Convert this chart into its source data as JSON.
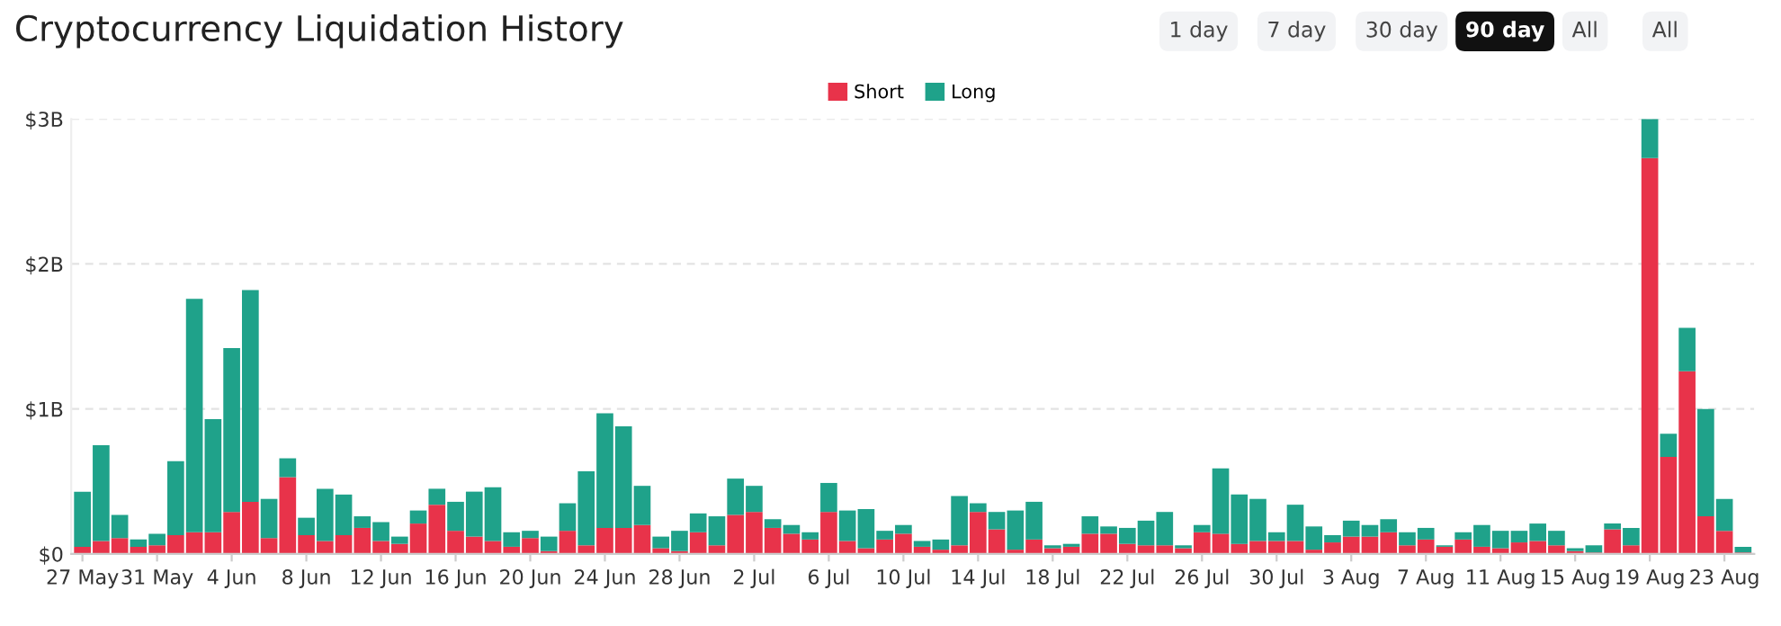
{
  "chart_data": {
    "type": "bar",
    "title": "Cryptocurrency Liquidation History",
    "annotations": [
      "1 day",
      "7 day",
      "30 day",
      "90 day",
      "All",
      "All"
    ],
    "categories": [
      "27 May",
      null,
      null,
      null,
      "31 May",
      null,
      null,
      null,
      "4 Jun",
      null,
      null,
      null,
      "8 Jun",
      null,
      null,
      null,
      "12 Jun",
      null,
      null,
      null,
      "16 Jun",
      null,
      null,
      null,
      "20 Jun",
      null,
      null,
      null,
      "24 Jun",
      null,
      null,
      null,
      "28 Jun",
      null,
      null,
      null,
      "2 Jul",
      null,
      null,
      null,
      "6 Jul",
      null,
      null,
      null,
      "10 Jul",
      null,
      null,
      null,
      "14 Jul",
      null,
      null,
      null,
      "18 Jul",
      null,
      null,
      null,
      "22 Jul",
      null,
      null,
      null,
      "26 Jul",
      null,
      null,
      null,
      "30 Jul",
      null,
      null,
      null,
      "3 Aug",
      null,
      null,
      null,
      "7 Aug",
      null,
      null,
      null,
      "11 Aug",
      null,
      null,
      null,
      "15 Aug",
      null,
      null,
      null,
      "19 Aug",
      null,
      null,
      null,
      "23 Aug",
      null
    ],
    "stacked": true,
    "series": [
      {
        "name": "Short",
        "color": "#e8334a",
        "values": [
          0.05,
          0.09,
          0.11,
          0.05,
          0.06,
          0.13,
          0.15,
          0.15,
          0.29,
          0.36,
          0.11,
          0.53,
          0.13,
          0.09,
          0.13,
          0.18,
          0.09,
          0.07,
          0.21,
          0.34,
          0.16,
          0.12,
          0.09,
          0.05,
          0.11,
          0.02,
          0.16,
          0.06,
          0.18,
          0.18,
          0.2,
          0.04,
          0.02,
          0.15,
          0.06,
          0.27,
          0.29,
          0.18,
          0.14,
          0.1,
          0.29,
          0.09,
          0.04,
          0.1,
          0.14,
          0.05,
          0.03,
          0.06,
          0.29,
          0.17,
          0.03,
          0.1,
          0.04,
          0.05,
          0.14,
          0.14,
          0.07,
          0.06,
          0.06,
          0.04,
          0.15,
          0.14,
          0.07,
          0.09,
          0.09,
          0.09,
          0.03,
          0.08,
          0.12,
          0.12,
          0.15,
          0.06,
          0.1,
          0.05,
          0.1,
          0.05,
          0.04,
          0.08,
          0.09,
          0.06,
          0.02,
          0.01,
          0.17,
          0.06,
          2.73,
          0.67,
          1.26,
          0.26,
          0.16,
          0.01
        ]
      },
      {
        "name": "Long",
        "color": "#1fa28a",
        "values": [
          0.38,
          0.66,
          0.16,
          0.05,
          0.08,
          0.51,
          1.61,
          0.78,
          1.13,
          1.46,
          0.27,
          0.13,
          0.12,
          0.36,
          0.28,
          0.08,
          0.13,
          0.05,
          0.09,
          0.11,
          0.2,
          0.31,
          0.37,
          0.1,
          0.05,
          0.1,
          0.19,
          0.51,
          0.79,
          0.7,
          0.27,
          0.08,
          0.14,
          0.13,
          0.2,
          0.25,
          0.18,
          0.06,
          0.06,
          0.05,
          0.2,
          0.21,
          0.27,
          0.06,
          0.06,
          0.04,
          0.07,
          0.34,
          0.06,
          0.12,
          0.27,
          0.26,
          0.02,
          0.02,
          0.12,
          0.05,
          0.11,
          0.17,
          0.23,
          0.02,
          0.05,
          0.45,
          0.34,
          0.29,
          0.06,
          0.25,
          0.16,
          0.05,
          0.11,
          0.08,
          0.09,
          0.09,
          0.08,
          0.01,
          0.05,
          0.15,
          0.12,
          0.08,
          0.12,
          0.1,
          0.02,
          0.05,
          0.04,
          0.12,
          0.27,
          0.16,
          0.3,
          0.74,
          0.22,
          0.04
        ]
      }
    ],
    "ylim": [
      0,
      3
    ],
    "yticks": [
      {
        "value": 0,
        "label": "$0"
      },
      {
        "value": 1,
        "label": "$1B"
      },
      {
        "value": 2,
        "label": "$2B"
      },
      {
        "value": 3,
        "label": "$3B"
      }
    ],
    "grid": "y",
    "legend": "top"
  }
}
